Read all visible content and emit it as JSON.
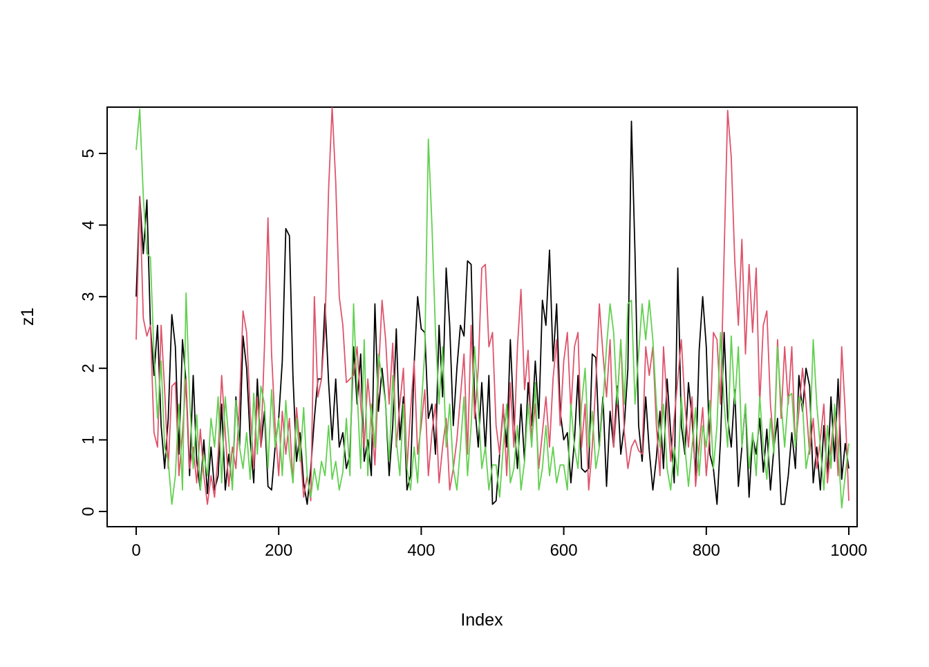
{
  "figure": {
    "background": "#ffffff",
    "axis_color": "#000000"
  },
  "chart_data": {
    "type": "line",
    "title": "",
    "xlabel": "Index",
    "ylabel": "z1",
    "xlim": [
      0,
      1000
    ],
    "ylim": [
      0,
      5.65
    ],
    "x_ticks": [
      0,
      200,
      400,
      600,
      800,
      1000
    ],
    "y_ticks": [
      0,
      1,
      2,
      3,
      4,
      5
    ],
    "x_step": 5,
    "grid": false,
    "legend": "none",
    "series": [
      {
        "name": "black-series",
        "color": "#000000",
        "values": [
          3.0,
          4.4,
          3.6,
          4.35,
          2.6,
          1.9,
          2.6,
          1.2,
          0.6,
          1.3,
          2.75,
          2.3,
          0.8,
          2.4,
          1.8,
          0.5,
          1.9,
          0.7,
          0.3,
          1.0,
          0.25,
          0.9,
          0.3,
          0.5,
          1.5,
          0.3,
          0.8,
          0.35,
          1.6,
          0.9,
          2.45,
          2.0,
          1.0,
          0.4,
          1.85,
          0.9,
          1.4,
          0.35,
          0.3,
          0.9,
          1.3,
          2.1,
          3.95,
          3.85,
          1.9,
          0.7,
          1.1,
          0.4,
          0.1,
          0.6,
          1.3,
          1.85,
          1.85,
          2.9,
          1.8,
          1.0,
          1.85,
          0.9,
          1.1,
          0.6,
          0.8,
          2.3,
          1.5,
          2.2,
          0.7,
          1.0,
          0.5,
          2.9,
          1.4,
          2.0,
          1.5,
          0.5,
          1.2,
          2.55,
          1.0,
          1.6,
          0.3,
          0.5,
          2.05,
          3.0,
          2.55,
          2.5,
          1.3,
          1.5,
          0.8,
          2.6,
          1.6,
          3.4,
          2.6,
          1.2,
          2.0,
          2.6,
          2.45,
          3.5,
          3.45,
          1.5,
          0.9,
          1.8,
          0.85,
          1.9,
          0.1,
          0.15,
          0.8,
          1.45,
          0.9,
          2.4,
          1.3,
          0.6,
          1.5,
          0.7,
          1.8,
          1.2,
          2.1,
          1.3,
          2.95,
          2.6,
          3.65,
          2.1,
          2.9,
          1.4,
          1.0,
          1.1,
          0.4,
          1.0,
          1.9,
          0.6,
          0.55,
          0.6,
          2.2,
          2.15,
          0.9,
          1.6,
          0.35,
          1.4,
          0.9,
          1.75,
          0.8,
          1.2,
          2.0,
          5.45,
          3.6,
          1.2,
          0.7,
          1.6,
          0.85,
          0.3,
          0.75,
          1.4,
          0.6,
          1.85,
          1.1,
          0.4,
          3.4,
          1.2,
          0.8,
          1.8,
          1.3,
          0.5,
          2.25,
          3.0,
          2.3,
          0.8,
          0.6,
          0.1,
          1.0,
          2.5,
          1.3,
          0.9,
          1.7,
          0.35,
          0.9,
          1.5,
          0.2,
          1.05,
          0.8,
          1.3,
          0.55,
          1.15,
          0.3,
          0.9,
          1.3,
          0.1,
          0.1,
          0.5,
          1.1,
          0.6,
          1.9,
          1.4,
          2.0,
          1.75,
          0.4,
          0.9,
          0.3,
          1.2,
          0.5,
          1.6,
          0.7,
          1.85,
          0.45,
          0.95,
          0.6
        ]
      },
      {
        "name": "red-series",
        "color": "#DF536B",
        "values": [
          2.4,
          4.4,
          2.7,
          2.45,
          2.6,
          1.1,
          0.9,
          2.6,
          1.7,
          0.6,
          1.75,
          1.8,
          0.5,
          1.1,
          1.85,
          0.6,
          0.9,
          0.4,
          1.15,
          0.5,
          0.1,
          0.5,
          0.2,
          0.8,
          1.9,
          1.1,
          0.35,
          0.9,
          0.6,
          1.5,
          2.8,
          2.5,
          1.4,
          0.6,
          1.6,
          0.9,
          2.3,
          4.1,
          2.2,
          1.2,
          0.5,
          1.4,
          0.8,
          1.3,
          0.4,
          1.45,
          0.9,
          0.2,
          0.5,
          0.15,
          3.0,
          1.6,
          1.85,
          2.55,
          4.5,
          5.65,
          4.6,
          3.0,
          2.6,
          1.8,
          1.85,
          1.9,
          2.3,
          1.5,
          0.9,
          1.85,
          1.3,
          0.65,
          1.9,
          2.95,
          2.4,
          1.5,
          2.35,
          0.9,
          1.5,
          2.0,
          0.6,
          1.4,
          2.1,
          0.8,
          1.2,
          1.7,
          0.5,
          1.1,
          1.5,
          0.4,
          0.9,
          1.3,
          0.3,
          0.6,
          1.0,
          1.6,
          2.2,
          0.8,
          2.6,
          1.3,
          2.0,
          3.4,
          3.45,
          2.3,
          2.5,
          1.2,
          0.8,
          1.5,
          0.5,
          1.8,
          0.9,
          2.3,
          3.1,
          1.7,
          2.25,
          1.0,
          1.5,
          0.6,
          1.1,
          1.6,
          0.9,
          1.85,
          2.4,
          1.2,
          2.1,
          2.5,
          1.4,
          2.3,
          2.5,
          0.9,
          1.5,
          0.3,
          0.9,
          1.8,
          2.9,
          2.2,
          1.6,
          2.4,
          0.9,
          1.5,
          2.4,
          1.1,
          0.6,
          0.9,
          1.0,
          0.85,
          0.8,
          2.3,
          1.9,
          2.3,
          1.2,
          0.5,
          2.3,
          1.5,
          0.7,
          1.3,
          1.85,
          2.4,
          1.5,
          0.9,
          1.6,
          0.35,
          0.9,
          1.45,
          0.5,
          1.1,
          2.5,
          2.4,
          1.5,
          3.6,
          5.6,
          4.95,
          3.5,
          2.6,
          3.8,
          2.2,
          3.45,
          2.5,
          3.4,
          1.5,
          2.6,
          2.8,
          1.5,
          0.9,
          2.4,
          1.3,
          2.3,
          1.5,
          2.3,
          0.9,
          1.4,
          2.0,
          1.5,
          0.8,
          1.3,
          0.6,
          1.0,
          1.5,
          0.4,
          0.9,
          1.4,
          0.5,
          2.3,
          1.4,
          0.15
        ]
      },
      {
        "name": "green-series",
        "color": "#61D04F",
        "values": [
          5.05,
          5.62,
          4.4,
          3.6,
          3.55,
          2.2,
          1.3,
          2.1,
          0.9,
          0.7,
          0.1,
          0.5,
          1.5,
          0.3,
          3.05,
          1.6,
          0.6,
          1.35,
          0.3,
          0.8,
          0.5,
          1.3,
          0.9,
          1.6,
          0.4,
          1.6,
          1.0,
          0.3,
          1.55,
          0.9,
          0.6,
          1.1,
          0.45,
          1.65,
          0.8,
          1.75,
          1.5,
          0.6,
          1.7,
          0.9,
          1.3,
          0.5,
          1.55,
          0.8,
          0.4,
          1.3,
          0.7,
          1.45,
          0.5,
          0.2,
          0.6,
          0.3,
          0.7,
          0.5,
          1.2,
          0.45,
          0.7,
          0.3,
          0.55,
          1.3,
          0.5,
          2.9,
          1.7,
          0.6,
          2.4,
          0.5,
          1.5,
          0.9,
          2.2,
          1.85,
          1.5,
          0.7,
          1.9,
          1.0,
          0.5,
          1.5,
          0.6,
          0.3,
          0.9,
          0.4,
          1.45,
          2.25,
          5.2,
          4.0,
          2.5,
          1.5,
          2.3,
          0.9,
          1.5,
          0.6,
          0.3,
          0.9,
          1.6,
          0.5,
          1.2,
          2.3,
          1.5,
          0.6,
          0.9,
          0.3,
          0.65,
          0.65,
          0.2,
          0.9,
          1.5,
          0.4,
          0.6,
          1.2,
          0.3,
          0.7,
          1.5,
          0.9,
          1.8,
          0.3,
          0.6,
          1.2,
          0.5,
          0.9,
          0.4,
          0.65,
          0.65,
          0.3,
          1.5,
          0.9,
          0.6,
          1.5,
          2.0,
          0.9,
          1.4,
          0.6,
          0.9,
          1.5,
          2.3,
          2.9,
          2.5,
          1.5,
          2.4,
          1.5,
          2.9,
          2.95,
          1.5,
          2.2,
          2.9,
          2.4,
          2.95,
          2.4,
          1.5,
          0.9,
          1.5,
          0.6,
          0.3,
          0.9,
          0.5,
          1.6,
          0.9,
          0.35,
          0.9,
          1.45,
          0.5,
          1.2,
          0.9,
          1.55,
          0.6,
          1.2,
          2.5,
          1.5,
          0.9,
          2.45,
          1.5,
          2.3,
          0.9,
          1.5,
          0.6,
          1.1,
          0.5,
          1.6,
          0.9,
          0.45,
          1.3,
          0.8,
          2.3,
          1.5,
          0.9,
          1.6,
          1.65,
          0.9,
          1.6,
          1.5,
          0.6,
          0.9,
          2.4,
          1.5,
          0.9,
          0.3,
          1.2,
          0.6,
          1.5,
          0.9,
          0.05,
          0.5,
          0.95
        ]
      }
    ]
  }
}
